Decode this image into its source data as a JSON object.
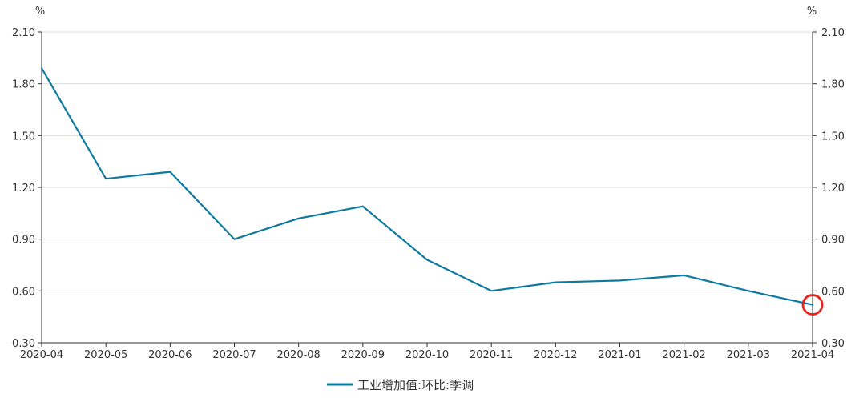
{
  "chart_data": {
    "type": "line",
    "categories": [
      "2020-04",
      "2020-05",
      "2020-06",
      "2020-07",
      "2020-08",
      "2020-09",
      "2020-10",
      "2020-11",
      "2020-12",
      "2021-01",
      "2021-02",
      "2021-03",
      "2021-04"
    ],
    "series": [
      {
        "name": "工业增加值:环比:季调",
        "values": [
          1.89,
          1.25,
          1.29,
          0.9,
          1.02,
          1.09,
          0.78,
          0.6,
          0.65,
          0.66,
          0.69,
          0.6,
          0.52
        ],
        "color": "#0e7aa0"
      }
    ],
    "y_ticks": [
      "0.30",
      "0.60",
      "0.90",
      "1.20",
      "1.50",
      "1.80",
      "2.10"
    ],
    "ylim": [
      0.3,
      2.1
    ],
    "y_unit_left": "%",
    "y_unit_right": "%",
    "grid": true,
    "legend_position": "bottom-center",
    "highlight": {
      "index": 12,
      "color": "#e8231b"
    }
  }
}
